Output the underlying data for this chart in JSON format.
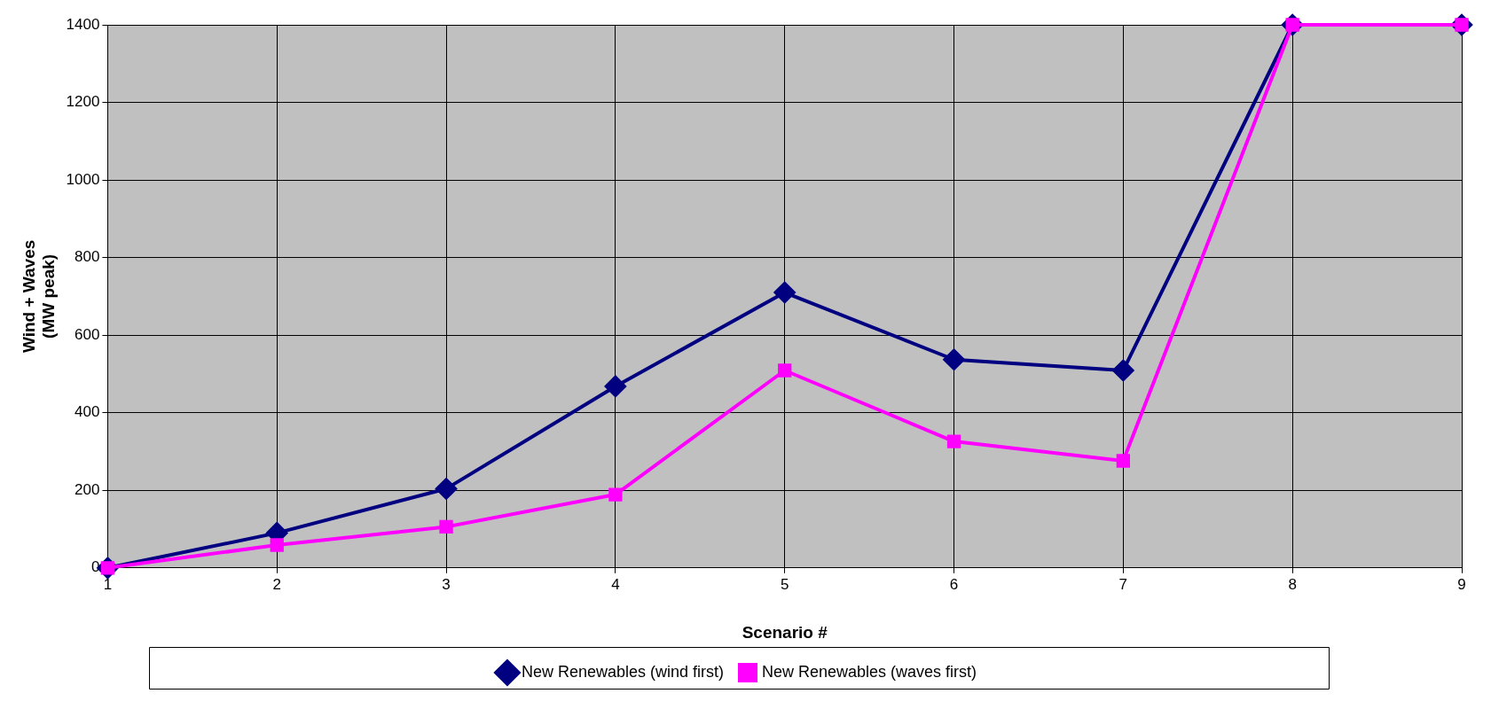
{
  "chart_data": {
    "type": "line",
    "xlabel": "Scenario #",
    "ylabel": "Wind + Waves\n(MW peak)",
    "x": [
      1,
      2,
      3,
      4,
      5,
      6,
      7,
      8,
      9
    ],
    "series": [
      {
        "name": "New Renewables (wind first)",
        "color": "#000080",
        "marker": "diamond",
        "values": [
          0,
          90,
          204,
          468,
          710,
          537,
          509,
          1400,
          1400
        ]
      },
      {
        "name": "New Renewables (waves first)",
        "color": "#ff00ff",
        "marker": "square",
        "values": [
          0,
          59,
          106,
          189,
          509,
          326,
          276,
          1400,
          1400
        ]
      }
    ],
    "xlim": [
      1,
      9
    ],
    "xticks": [
      1,
      2,
      3,
      4,
      5,
      6,
      7,
      8,
      9
    ],
    "ylim": [
      0,
      1400
    ],
    "yticks": [
      0,
      200,
      400,
      600,
      800,
      1000,
      1200,
      1400
    ],
    "grid": true,
    "legend": "bottom",
    "line_style": "solid"
  }
}
